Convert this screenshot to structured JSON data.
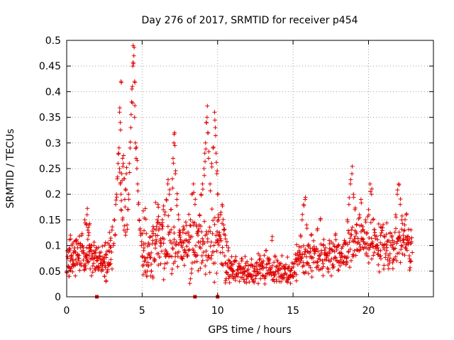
{
  "chart_data": {
    "type": "scatter",
    "title": "Day 276 of 2017, SRMTID for receiver p454",
    "xlabel": "GPS time / hours",
    "ylabel": "SRMTID / TECUs",
    "xlim": [
      0,
      24.3
    ],
    "ylim": [
      0,
      0.5
    ],
    "x_ticks": [
      0,
      5,
      10,
      15,
      20
    ],
    "x_tick_labels": [
      "0",
      "5",
      "10",
      "15",
      "20"
    ],
    "y_ticks": [
      0,
      0.05,
      0.1,
      0.15,
      0.2,
      0.25,
      0.3,
      0.35,
      0.4,
      0.45,
      0.5
    ],
    "y_tick_labels": [
      "0",
      "0.05",
      "0.1",
      "0.15",
      "0.2",
      "0.25",
      "0.3",
      "0.35",
      "0.4",
      "0.45",
      "0.5"
    ],
    "grid": true,
    "marker": "plus",
    "color": "#e00000",
    "series": [
      {
        "name": "SRMTID",
        "points": [
          [
            0.0,
            0.05
          ],
          [
            0.1,
            0.06
          ],
          [
            0.15,
            0.04
          ],
          [
            0.2,
            0.09
          ],
          [
            0.25,
            0.12
          ],
          [
            0.3,
            0.08
          ],
          [
            0.35,
            0.1
          ],
          [
            0.4,
            0.07
          ],
          [
            0.45,
            0.06
          ],
          [
            0.5,
            0.09
          ],
          [
            0.6,
            0.11
          ],
          [
            0.7,
            0.08
          ],
          [
            0.8,
            0.07
          ],
          [
            0.9,
            0.1
          ],
          [
            1.0,
            0.12
          ],
          [
            1.1,
            0.09
          ],
          [
            1.2,
            0.06
          ],
          [
            1.3,
            0.08
          ],
          [
            1.4,
            0.07
          ],
          [
            1.5,
            0.1
          ],
          [
            1.2,
            0.15
          ],
          [
            1.3,
            0.14
          ],
          [
            1.35,
            0.16
          ],
          [
            1.4,
            0.13
          ],
          [
            1.45,
            0.12
          ],
          [
            1.5,
            0.14
          ],
          [
            1.6,
            0.09
          ],
          [
            1.7,
            0.08
          ],
          [
            1.8,
            0.1
          ],
          [
            1.9,
            0.09
          ],
          [
            2.0,
            0.07
          ],
          [
            2.1,
            0.06
          ],
          [
            2.2,
            0.08
          ],
          [
            2.3,
            0.05
          ],
          [
            2.4,
            0.07
          ],
          [
            2.5,
            0.04
          ],
          [
            2.55,
            0.06
          ],
          [
            2.6,
            0.03
          ],
          [
            2.7,
            0.05
          ],
          [
            2.8,
            0.09
          ],
          [
            2.9,
            0.11
          ],
          [
            3.0,
            0.13
          ],
          [
            3.1,
            0.1
          ],
          [
            3.15,
            0.15
          ],
          [
            3.2,
            0.12
          ],
          [
            3.25,
            0.18
          ],
          [
            3.3,
            0.2
          ],
          [
            3.35,
            0.23
          ],
          [
            3.4,
            0.26
          ],
          [
            3.45,
            0.28
          ],
          [
            3.5,
            0.25
          ],
          [
            3.55,
            0.22
          ],
          [
            3.6,
            0.2
          ],
          [
            3.65,
            0.24
          ],
          [
            3.7,
            0.27
          ],
          [
            3.75,
            0.26
          ],
          [
            3.8,
            0.23
          ],
          [
            3.85,
            0.19
          ],
          [
            3.9,
            0.21
          ],
          [
            3.95,
            0.24
          ],
          [
            3.5,
            0.36
          ],
          [
            3.55,
            0.34
          ],
          [
            3.6,
            0.42
          ],
          [
            3.6,
            0.17
          ],
          [
            3.7,
            0.15
          ],
          [
            3.8,
            0.13
          ],
          [
            3.9,
            0.12
          ],
          [
            4.0,
            0.14
          ],
          [
            4.05,
            0.17
          ],
          [
            4.1,
            0.2
          ],
          [
            4.15,
            0.26
          ],
          [
            4.2,
            0.29
          ],
          [
            4.25,
            0.33
          ],
          [
            4.3,
            0.38
          ],
          [
            4.35,
            0.41
          ],
          [
            4.38,
            0.45
          ],
          [
            4.4,
            0.49
          ],
          [
            4.45,
            0.47
          ],
          [
            4.5,
            0.42
          ],
          [
            4.5,
            0.35
          ],
          [
            4.55,
            0.3
          ],
          [
            4.6,
            0.27
          ],
          [
            4.65,
            0.25
          ],
          [
            4.7,
            0.22
          ],
          [
            4.75,
            0.18
          ],
          [
            4.8,
            0.15
          ],
          [
            4.85,
            0.13
          ],
          [
            4.9,
            0.12
          ],
          [
            4.95,
            0.1
          ],
          [
            5.0,
            0.08
          ],
          [
            5.05,
            0.06
          ],
          [
            5.1,
            0.09
          ],
          [
            5.15,
            0.07
          ],
          [
            5.2,
            0.05
          ],
          [
            5.3,
            0.04
          ],
          [
            5.4,
            0.06
          ],
          [
            5.5,
            0.08
          ],
          [
            5.6,
            0.05
          ],
          [
            5.7,
            0.04
          ],
          [
            5.8,
            0.07
          ],
          [
            5.9,
            0.12
          ],
          [
            6.0,
            0.15
          ],
          [
            6.05,
            0.18
          ],
          [
            6.1,
            0.13
          ],
          [
            6.2,
            0.11
          ],
          [
            6.3,
            0.14
          ],
          [
            6.4,
            0.17
          ],
          [
            6.5,
            0.16
          ],
          [
            6.6,
            0.19
          ],
          [
            6.7,
            0.22
          ],
          [
            6.8,
            0.2
          ],
          [
            6.9,
            0.17
          ],
          [
            7.0,
            0.23
          ],
          [
            7.05,
            0.27
          ],
          [
            7.1,
            0.3
          ],
          [
            7.15,
            0.32
          ],
          [
            7.2,
            0.24
          ],
          [
            7.3,
            0.19
          ],
          [
            7.4,
            0.16
          ],
          [
            7.5,
            0.12
          ],
          [
            7.6,
            0.1
          ],
          [
            7.7,
            0.13
          ],
          [
            7.8,
            0.09
          ],
          [
            7.9,
            0.11
          ],
          [
            8.0,
            0.08
          ],
          [
            8.1,
            0.12
          ],
          [
            8.2,
            0.15
          ],
          [
            8.3,
            0.2
          ],
          [
            8.4,
            0.22
          ],
          [
            8.5,
            0.18
          ],
          [
            8.6,
            0.14
          ],
          [
            8.7,
            0.12
          ],
          [
            8.8,
            0.16
          ],
          [
            8.9,
            0.2
          ],
          [
            9.0,
            0.22
          ],
          [
            9.1,
            0.25
          ],
          [
            9.15,
            0.28
          ],
          [
            9.2,
            0.3
          ],
          [
            9.25,
            0.34
          ],
          [
            9.3,
            0.35
          ],
          [
            9.35,
            0.32
          ],
          [
            9.4,
            0.27
          ],
          [
            9.5,
            0.22
          ],
          [
            9.6,
            0.26
          ],
          [
            9.7,
            0.29
          ],
          [
            9.8,
            0.36
          ],
          [
            9.85,
            0.33
          ],
          [
            9.9,
            0.28
          ],
          [
            9.95,
            0.24
          ],
          [
            10.0,
            0.2
          ],
          [
            10.05,
            0.15
          ],
          [
            10.1,
            0.12
          ],
          [
            10.2,
            0.16
          ],
          [
            10.3,
            0.18
          ],
          [
            10.4,
            0.14
          ],
          [
            10.5,
            0.12
          ],
          [
            10.6,
            0.1
          ],
          [
            10.7,
            0.09
          ],
          [
            10.8,
            0.07
          ],
          [
            10.9,
            0.06
          ],
          [
            11.0,
            0.05
          ],
          [
            11.2,
            0.04
          ],
          [
            11.4,
            0.06
          ],
          [
            11.6,
            0.07
          ],
          [
            11.8,
            0.05
          ],
          [
            12.0,
            0.04
          ],
          [
            12.2,
            0.06
          ],
          [
            12.4,
            0.03
          ],
          [
            12.6,
            0.05
          ],
          [
            12.8,
            0.08
          ],
          [
            13.0,
            0.06
          ],
          [
            13.2,
            0.09
          ],
          [
            13.4,
            0.07
          ],
          [
            13.6,
            0.11
          ],
          [
            13.8,
            0.08
          ],
          [
            14.0,
            0.05
          ],
          [
            14.2,
            0.04
          ],
          [
            14.4,
            0.06
          ],
          [
            14.6,
            0.03
          ],
          [
            14.8,
            0.05
          ],
          [
            15.0,
            0.04
          ],
          [
            15.2,
            0.07
          ],
          [
            15.4,
            0.09
          ],
          [
            15.5,
            0.12
          ],
          [
            15.6,
            0.15
          ],
          [
            15.7,
            0.18
          ],
          [
            15.8,
            0.19
          ],
          [
            15.9,
            0.14
          ],
          [
            16.0,
            0.1
          ],
          [
            16.2,
            0.12
          ],
          [
            16.4,
            0.09
          ],
          [
            16.6,
            0.13
          ],
          [
            16.8,
            0.15
          ],
          [
            17.0,
            0.1
          ],
          [
            17.2,
            0.08
          ],
          [
            17.4,
            0.11
          ],
          [
            17.6,
            0.09
          ],
          [
            17.8,
            0.12
          ],
          [
            18.0,
            0.1
          ],
          [
            18.2,
            0.08
          ],
          [
            18.4,
            0.11
          ],
          [
            18.6,
            0.15
          ],
          [
            18.7,
            0.18
          ],
          [
            18.8,
            0.22
          ],
          [
            18.9,
            0.24
          ],
          [
            19.0,
            0.2
          ],
          [
            19.1,
            0.17
          ],
          [
            19.2,
            0.14
          ],
          [
            19.4,
            0.16
          ],
          [
            19.5,
            0.19
          ],
          [
            19.6,
            0.13
          ],
          [
            19.8,
            0.15
          ],
          [
            20.0,
            0.17
          ],
          [
            20.1,
            0.22
          ],
          [
            20.2,
            0.2
          ],
          [
            20.3,
            0.15
          ],
          [
            20.4,
            0.12
          ],
          [
            20.6,
            0.1
          ],
          [
            20.8,
            0.08
          ],
          [
            21.0,
            0.1
          ],
          [
            21.2,
            0.09
          ],
          [
            21.4,
            0.07
          ],
          [
            21.6,
            0.11
          ],
          [
            21.8,
            0.16
          ],
          [
            21.9,
            0.2
          ],
          [
            22.0,
            0.22
          ],
          [
            22.1,
            0.18
          ],
          [
            22.2,
            0.15
          ],
          [
            22.3,
            0.12
          ],
          [
            22.4,
            0.14
          ],
          [
            22.5,
            0.16
          ],
          [
            22.6,
            0.11
          ],
          [
            22.7,
            0.08
          ],
          [
            22.8,
            0.07
          ]
        ]
      }
    ],
    "cluster_bands": [
      {
        "x_start": 0.0,
        "x_end": 3.0,
        "y_center": 0.075,
        "spread": 0.03
      },
      {
        "x_start": 5.0,
        "x_end": 10.5,
        "y_center": 0.1,
        "spread": 0.05
      },
      {
        "x_start": 10.5,
        "x_end": 15.2,
        "y_center": 0.05,
        "spread": 0.025
      },
      {
        "x_start": 15.2,
        "x_end": 18.5,
        "y_center": 0.075,
        "spread": 0.03
      },
      {
        "x_start": 18.5,
        "x_end": 22.9,
        "y_center": 0.1,
        "spread": 0.035
      }
    ],
    "zero_markers": [
      2.0,
      8.5,
      10.0
    ]
  }
}
